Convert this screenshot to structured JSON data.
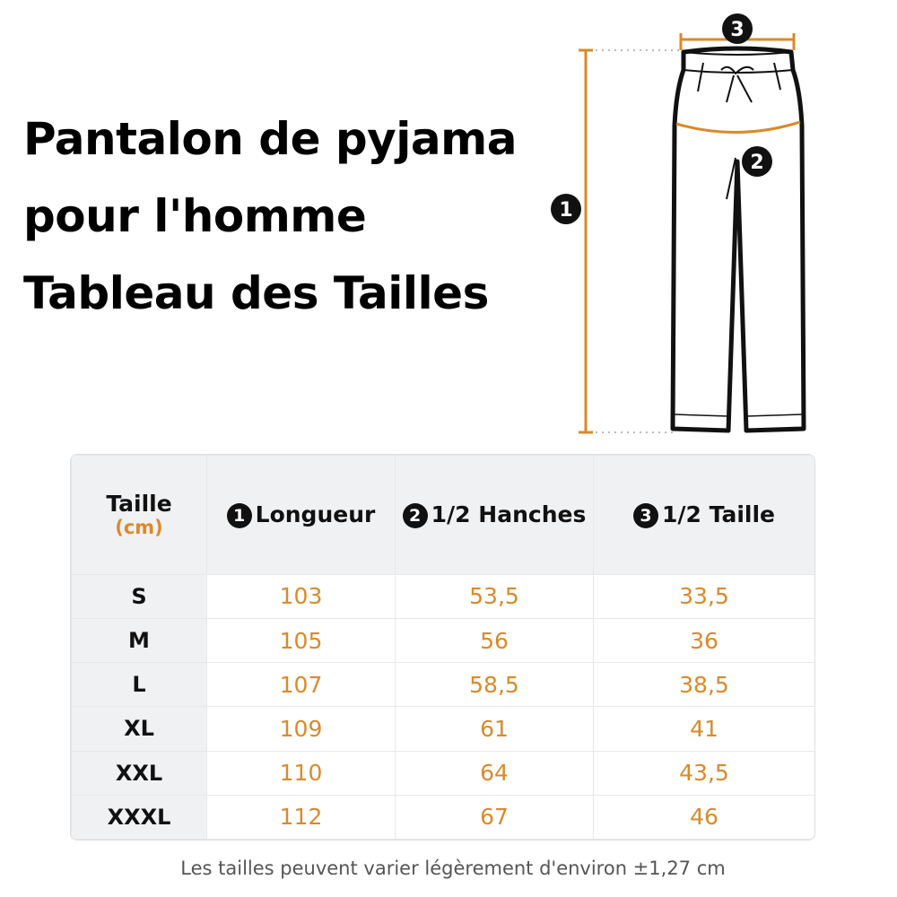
{
  "title_lines": [
    "Pantalon de pyjama",
    "pour l'homme",
    "Tableau des Tailles"
  ],
  "diagram": {
    "markers": [
      "1",
      "2",
      "3"
    ],
    "accent_color": "#d98a2b"
  },
  "table": {
    "headers": {
      "size": "Taille",
      "unit": "(cm)",
      "columns": [
        {
          "marker": "1",
          "label": "Longueur"
        },
        {
          "marker": "2",
          "label": "1/2 Hanches"
        },
        {
          "marker": "3",
          "label": "1/2 Taille"
        }
      ]
    },
    "rows": [
      {
        "size": "S",
        "values": [
          "103",
          "53,5",
          "33,5"
        ]
      },
      {
        "size": "M",
        "values": [
          "105",
          "56",
          "36"
        ]
      },
      {
        "size": "L",
        "values": [
          "107",
          "58,5",
          "38,5"
        ]
      },
      {
        "size": "XL",
        "values": [
          "109",
          "61",
          "41"
        ]
      },
      {
        "size": "XXL",
        "values": [
          "110",
          "64",
          "43,5"
        ]
      },
      {
        "size": "XXXL",
        "values": [
          "112",
          "67",
          "46"
        ]
      }
    ]
  },
  "note": "Les tailles peuvent varier légèrement d'environ ±1,27 cm"
}
